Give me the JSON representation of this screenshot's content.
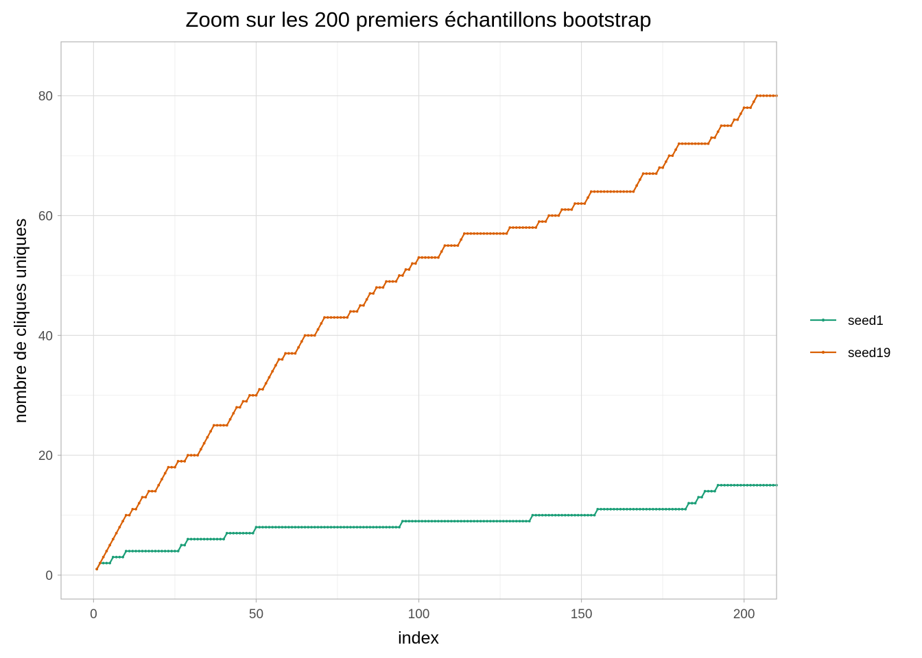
{
  "chart_data": {
    "type": "line",
    "title": "Zoom sur les 200 premiers échantillons bootstrap",
    "xlabel": "index",
    "ylabel": "nombre de cliques uniques",
    "xlim": [
      -10,
      210
    ],
    "ylim": [
      -4,
      89
    ],
    "x_ticks": [
      0,
      50,
      100,
      150,
      200
    ],
    "y_ticks": [
      0,
      20,
      40,
      60,
      80
    ],
    "grid": true,
    "legend_position": "right",
    "series": [
      {
        "name": "seed1",
        "color": "#1b9e77",
        "steps": [
          [
            1,
            1
          ],
          [
            2,
            2
          ],
          [
            6,
            3
          ],
          [
            10,
            4
          ],
          [
            27,
            5
          ],
          [
            29,
            6
          ],
          [
            41,
            7
          ],
          [
            50,
            8
          ],
          [
            95,
            9
          ],
          [
            135,
            10
          ],
          [
            155,
            11
          ],
          [
            183,
            12
          ],
          [
            186,
            13
          ],
          [
            188,
            14
          ],
          [
            192,
            15
          ],
          [
            210,
            15
          ]
        ]
      },
      {
        "name": "seed19",
        "color": "#d95f02",
        "steps": [
          [
            1,
            1
          ],
          [
            2,
            2
          ],
          [
            3,
            3
          ],
          [
            4,
            4
          ],
          [
            5,
            5
          ],
          [
            6,
            6
          ],
          [
            7,
            7
          ],
          [
            8,
            8
          ],
          [
            9,
            9
          ],
          [
            10,
            10
          ],
          [
            12,
            11
          ],
          [
            14,
            12
          ],
          [
            15,
            13
          ],
          [
            17,
            14
          ],
          [
            20,
            15
          ],
          [
            21,
            16
          ],
          [
            22,
            17
          ],
          [
            23,
            18
          ],
          [
            26,
            19
          ],
          [
            29,
            20
          ],
          [
            33,
            21
          ],
          [
            34,
            22
          ],
          [
            35,
            23
          ],
          [
            36,
            24
          ],
          [
            37,
            25
          ],
          [
            42,
            26
          ],
          [
            43,
            27
          ],
          [
            44,
            28
          ],
          [
            46,
            29
          ],
          [
            48,
            30
          ],
          [
            51,
            31
          ],
          [
            53,
            32
          ],
          [
            54,
            33
          ],
          [
            55,
            34
          ],
          [
            56,
            35
          ],
          [
            57,
            36
          ],
          [
            59,
            37
          ],
          [
            63,
            38
          ],
          [
            64,
            39
          ],
          [
            65,
            40
          ],
          [
            69,
            41
          ],
          [
            70,
            42
          ],
          [
            71,
            43
          ],
          [
            79,
            44
          ],
          [
            82,
            45
          ],
          [
            84,
            46
          ],
          [
            85,
            47
          ],
          [
            87,
            48
          ],
          [
            90,
            49
          ],
          [
            94,
            50
          ],
          [
            96,
            51
          ],
          [
            98,
            52
          ],
          [
            100,
            53
          ],
          [
            107,
            54
          ],
          [
            108,
            55
          ],
          [
            113,
            56
          ],
          [
            114,
            57
          ],
          [
            128,
            58
          ],
          [
            137,
            59
          ],
          [
            140,
            60
          ],
          [
            144,
            61
          ],
          [
            148,
            62
          ],
          [
            152,
            63
          ],
          [
            153,
            64
          ],
          [
            167,
            65
          ],
          [
            168,
            66
          ],
          [
            169,
            67
          ],
          [
            174,
            68
          ],
          [
            176,
            69
          ],
          [
            177,
            70
          ],
          [
            179,
            71
          ],
          [
            180,
            72
          ],
          [
            190,
            73
          ],
          [
            192,
            74
          ],
          [
            193,
            75
          ],
          [
            197,
            76
          ],
          [
            199,
            77
          ],
          [
            200,
            78
          ],
          [
            203,
            79
          ],
          [
            204,
            80
          ],
          [
            210,
            80
          ]
        ]
      }
    ]
  }
}
